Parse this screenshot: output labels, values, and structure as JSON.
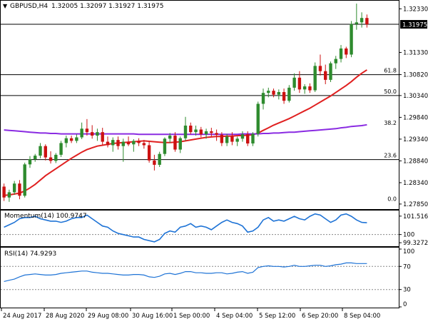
{
  "header": {
    "symbol": "GBPUSD,H4",
    "ohlc": "1.32005 1.32097 1.31927 1.31975"
  },
  "colors": {
    "bull": "#2e8b2e",
    "bear": "#cc1111",
    "sma20": "#e02020",
    "sma100": "#8a2be2",
    "indicator": "#1e73d6",
    "level_line": "#000000",
    "grid_dots": "#888888"
  },
  "chart_data": [
    {
      "type": "candlestick",
      "title": "GBPUSD,H4",
      "ylim": [
        1.2775,
        1.325
      ],
      "y_ticks": [
        "1.32330",
        "1.31975",
        "1.31330",
        "1.30820",
        "1.30340",
        "1.29840",
        "1.29340",
        "1.28840",
        "1.28340",
        "1.27850"
      ],
      "y_tick_values": [
        1.3233,
        1.31975,
        1.3133,
        1.3082,
        1.3034,
        1.2984,
        1.2934,
        1.2884,
        1.2834,
        1.2785
      ],
      "current_price": "1.31975",
      "fib_levels": [
        {
          "label": "61.8",
          "value": 1.3082
        },
        {
          "label": "50.0",
          "value": 1.3034
        },
        {
          "label": "38.2",
          "value": 1.2962
        },
        {
          "label": "23.6",
          "value": 1.2887
        },
        {
          "label": "0.0",
          "value": 1.2787
        }
      ],
      "horizontal_lines": [
        1.31975,
        1.3082,
        1.3034,
        1.2887
      ],
      "x_labels": [
        "24 Aug 2017",
        "28 Aug 2020",
        "29 Aug 08:00",
        "30 Aug 16:00",
        "1 Sep 00:00",
        "4 Sep 04:00",
        "5 Sep 12:00",
        "6 Sep 20:00",
        "8 Sep 04:00"
      ],
      "candles": [
        {
          "o": 1.2825,
          "h": 1.2832,
          "l": 1.2792,
          "c": 1.28
        },
        {
          "o": 1.28,
          "h": 1.2818,
          "l": 1.279,
          "c": 1.2812
        },
        {
          "o": 1.2812,
          "h": 1.2838,
          "l": 1.2806,
          "c": 1.2832
        },
        {
          "o": 1.2832,
          "h": 1.284,
          "l": 1.2796,
          "c": 1.2804
        },
        {
          "o": 1.2804,
          "h": 1.288,
          "l": 1.28,
          "c": 1.2876
        },
        {
          "o": 1.2876,
          "h": 1.2895,
          "l": 1.2868,
          "c": 1.2888
        },
        {
          "o": 1.2888,
          "h": 1.29,
          "l": 1.2882,
          "c": 1.2896
        },
        {
          "o": 1.2896,
          "h": 1.2925,
          "l": 1.289,
          "c": 1.2918
        },
        {
          "o": 1.2918,
          "h": 1.2922,
          "l": 1.2885,
          "c": 1.2892
        },
        {
          "o": 1.2892,
          "h": 1.2906,
          "l": 1.2878,
          "c": 1.2884
        },
        {
          "o": 1.2884,
          "h": 1.2902,
          "l": 1.2879,
          "c": 1.2898
        },
        {
          "o": 1.2898,
          "h": 1.293,
          "l": 1.2893,
          "c": 1.2925
        },
        {
          "o": 1.2925,
          "h": 1.2942,
          "l": 1.2915,
          "c": 1.2936
        },
        {
          "o": 1.2936,
          "h": 1.2942,
          "l": 1.2925,
          "c": 1.293
        },
        {
          "o": 1.293,
          "h": 1.2945,
          "l": 1.2925,
          "c": 1.2938
        },
        {
          "o": 1.2938,
          "h": 1.2972,
          "l": 1.2934,
          "c": 1.2958
        },
        {
          "o": 1.2958,
          "h": 1.298,
          "l": 1.2942,
          "c": 1.295
        },
        {
          "o": 1.295,
          "h": 1.2966,
          "l": 1.2935,
          "c": 1.2942
        },
        {
          "o": 1.2942,
          "h": 1.2958,
          "l": 1.293,
          "c": 1.295
        },
        {
          "o": 1.295,
          "h": 1.296,
          "l": 1.292,
          "c": 1.2928
        },
        {
          "o": 1.2928,
          "h": 1.294,
          "l": 1.2915,
          "c": 1.292
        },
        {
          "o": 1.292,
          "h": 1.2938,
          "l": 1.2905,
          "c": 1.2932
        },
        {
          "o": 1.2932,
          "h": 1.294,
          "l": 1.291,
          "c": 1.2918
        },
        {
          "o": 1.2918,
          "h": 1.2935,
          "l": 1.2882,
          "c": 1.2928
        },
        {
          "o": 1.2928,
          "h": 1.294,
          "l": 1.2918,
          "c": 1.2922
        },
        {
          "o": 1.2922,
          "h": 1.2934,
          "l": 1.2905,
          "c": 1.293
        },
        {
          "o": 1.293,
          "h": 1.2936,
          "l": 1.2918,
          "c": 1.2925
        },
        {
          "o": 1.2925,
          "h": 1.2932,
          "l": 1.2912,
          "c": 1.292
        },
        {
          "o": 1.292,
          "h": 1.2928,
          "l": 1.288,
          "c": 1.2885
        },
        {
          "o": 1.2885,
          "h": 1.2898,
          "l": 1.2862,
          "c": 1.2875
        },
        {
          "o": 1.2875,
          "h": 1.2905,
          "l": 1.287,
          "c": 1.29
        },
        {
          "o": 1.29,
          "h": 1.2938,
          "l": 1.2895,
          "c": 1.2935
        },
        {
          "o": 1.2935,
          "h": 1.2948,
          "l": 1.2925,
          "c": 1.2942
        },
        {
          "o": 1.2942,
          "h": 1.295,
          "l": 1.2905,
          "c": 1.291
        },
        {
          "o": 1.291,
          "h": 1.294,
          "l": 1.2902,
          "c": 1.2936
        },
        {
          "o": 1.2936,
          "h": 1.2985,
          "l": 1.293,
          "c": 1.2965
        },
        {
          "o": 1.2965,
          "h": 1.2972,
          "l": 1.2945,
          "c": 1.295
        },
        {
          "o": 1.295,
          "h": 1.2965,
          "l": 1.2942,
          "c": 1.2956
        },
        {
          "o": 1.2956,
          "h": 1.2962,
          "l": 1.2938,
          "c": 1.2945
        },
        {
          "o": 1.2945,
          "h": 1.2958,
          "l": 1.2935,
          "c": 1.2952
        },
        {
          "o": 1.2952,
          "h": 1.296,
          "l": 1.294,
          "c": 1.2948
        },
        {
          "o": 1.2948,
          "h": 1.2956,
          "l": 1.293,
          "c": 1.2944
        },
        {
          "o": 1.2944,
          "h": 1.295,
          "l": 1.2918,
          "c": 1.2925
        },
        {
          "o": 1.2925,
          "h": 1.2946,
          "l": 1.2918,
          "c": 1.294
        },
        {
          "o": 1.294,
          "h": 1.295,
          "l": 1.292,
          "c": 1.2928
        },
        {
          "o": 1.2928,
          "h": 1.294,
          "l": 1.2918,
          "c": 1.2935
        },
        {
          "o": 1.2935,
          "h": 1.2952,
          "l": 1.2928,
          "c": 1.2945
        },
        {
          "o": 1.2945,
          "h": 1.2952,
          "l": 1.2918,
          "c": 1.2924
        },
        {
          "o": 1.2924,
          "h": 1.295,
          "l": 1.2918,
          "c": 1.2946
        },
        {
          "o": 1.2946,
          "h": 1.302,
          "l": 1.294,
          "c": 1.3015
        },
        {
          "o": 1.3015,
          "h": 1.305,
          "l": 1.3002,
          "c": 1.304
        },
        {
          "o": 1.304,
          "h": 1.3052,
          "l": 1.303,
          "c": 1.3045
        },
        {
          "o": 1.3045,
          "h": 1.305,
          "l": 1.303,
          "c": 1.3036
        },
        {
          "o": 1.3036,
          "h": 1.3048,
          "l": 1.3025,
          "c": 1.3042
        },
        {
          "o": 1.3042,
          "h": 1.305,
          "l": 1.3015,
          "c": 1.3022
        },
        {
          "o": 1.3022,
          "h": 1.3058,
          "l": 1.3018,
          "c": 1.3052
        },
        {
          "o": 1.3052,
          "h": 1.3085,
          "l": 1.3045,
          "c": 1.3075
        },
        {
          "o": 1.3075,
          "h": 1.309,
          "l": 1.304,
          "c": 1.3048
        },
        {
          "o": 1.3048,
          "h": 1.306,
          "l": 1.3038,
          "c": 1.3055
        },
        {
          "o": 1.3055,
          "h": 1.3062,
          "l": 1.304,
          "c": 1.3046
        },
        {
          "o": 1.3046,
          "h": 1.311,
          "l": 1.3042,
          "c": 1.3102
        },
        {
          "o": 1.3102,
          "h": 1.3128,
          "l": 1.308,
          "c": 1.309
        },
        {
          "o": 1.309,
          "h": 1.3105,
          "l": 1.306,
          "c": 1.307
        },
        {
          "o": 1.307,
          "h": 1.3112,
          "l": 1.3065,
          "c": 1.3108
        },
        {
          "o": 1.3108,
          "h": 1.3125,
          "l": 1.3095,
          "c": 1.3118
        },
        {
          "o": 1.3118,
          "h": 1.315,
          "l": 1.311,
          "c": 1.3142
        },
        {
          "o": 1.3142,
          "h": 1.3146,
          "l": 1.312,
          "c": 1.3128
        },
        {
          "o": 1.3128,
          "h": 1.3205,
          "l": 1.3122,
          "c": 1.3198
        },
        {
          "o": 1.3198,
          "h": 1.3245,
          "l": 1.3185,
          "c": 1.3202
        },
        {
          "o": 1.3202,
          "h": 1.3225,
          "l": 1.319,
          "c": 1.3212
        },
        {
          "o": 1.3212,
          "h": 1.322,
          "l": 1.319,
          "c": 1.31975
        }
      ],
      "series": [
        {
          "id": "sma20",
          "values": [
            1.2805,
            1.2806,
            1.2808,
            1.281,
            1.2815,
            1.2822,
            1.283,
            1.284,
            1.285,
            1.2858,
            1.2866,
            1.2874,
            1.2882,
            1.289,
            1.2897,
            1.2904,
            1.291,
            1.2914,
            1.2918,
            1.292,
            1.2922,
            1.2924,
            1.2925,
            1.2926,
            1.2927,
            1.2928,
            1.2929,
            1.293,
            1.2929,
            1.2928,
            1.2927,
            1.2926,
            1.2926,
            1.2927,
            1.2928,
            1.293,
            1.2932,
            1.2934,
            1.2936,
            1.2938,
            1.2939,
            1.294,
            1.294,
            1.2941,
            1.2941,
            1.2942,
            1.2942,
            1.2943,
            1.2944,
            1.2948,
            1.2954,
            1.296,
            1.2966,
            1.2971,
            1.2976,
            1.2981,
            1.2987,
            1.2993,
            1.2999,
            1.3005,
            1.3012,
            1.3019,
            1.3026,
            1.3033,
            1.3041,
            1.3049,
            1.3057,
            1.3066,
            1.3076,
            1.3085,
            1.3093
          ]
        },
        {
          "id": "sma100",
          "values": [
            1.2955,
            1.2954,
            1.2953,
            1.2952,
            1.2951,
            1.295,
            1.2949,
            1.2948,
            1.2948,
            1.2947,
            1.2947,
            1.2946,
            1.2946,
            1.2946,
            1.2946,
            1.2946,
            1.2946,
            1.2946,
            1.2946,
            1.2946,
            1.2946,
            1.2946,
            1.2946,
            1.2946,
            1.2946,
            1.2946,
            1.2945,
            1.2945,
            1.2945,
            1.2945,
            1.2945,
            1.2945,
            1.2945,
            1.2945,
            1.2945,
            1.2945,
            1.2945,
            1.2945,
            1.2945,
            1.2945,
            1.2945,
            1.2945,
            1.2945,
            1.2945,
            1.2945,
            1.2945,
            1.2946,
            1.2946,
            1.2946,
            1.2946,
            1.2947,
            1.2947,
            1.2948,
            1.2948,
            1.2949,
            1.295,
            1.295,
            1.2951,
            1.2952,
            1.2953,
            1.2954,
            1.2955,
            1.2956,
            1.2957,
            1.2958,
            1.296,
            1.2961,
            1.2963,
            1.2964,
            1.2965,
            1.2967
          ]
        }
      ]
    },
    {
      "type": "line",
      "title": "Momentum(14) 100.9747",
      "ylim": [
        99.1,
        101.8
      ],
      "y_ticks": [
        "101.5166",
        "100",
        "99.3272"
      ],
      "y_tick_values": [
        101.5166,
        100.0,
        99.3272
      ],
      "dashed_level": 100,
      "values": [
        100.6,
        100.8,
        101.0,
        101.3,
        101.4,
        101.4,
        101.5,
        101.3,
        101.2,
        101.1,
        101.1,
        101.0,
        101.1,
        101.3,
        101.4,
        101.4,
        101.6,
        101.3,
        101.0,
        100.7,
        100.6,
        100.3,
        100.1,
        100.0,
        99.9,
        99.8,
        99.8,
        99.6,
        99.5,
        99.4,
        99.6,
        100.1,
        100.3,
        100.2,
        100.6,
        100.7,
        100.9,
        100.6,
        100.7,
        100.6,
        100.4,
        100.7,
        101.0,
        101.2,
        101.0,
        100.9,
        100.7,
        100.2,
        100.3,
        100.6,
        101.2,
        101.4,
        101.1,
        101.2,
        101.1,
        101.3,
        101.5,
        101.3,
        101.2,
        101.5,
        101.7,
        101.6,
        101.3,
        101.0,
        101.2,
        101.6,
        101.7,
        101.5,
        101.2,
        101.0,
        100.97
      ]
    },
    {
      "type": "line",
      "title": "RSI(14) 74.9293",
      "ylim": [
        0,
        100
      ],
      "y_ticks": [
        "100",
        "70",
        "30",
        "0"
      ],
      "y_tick_values": [
        100,
        70,
        30,
        0
      ],
      "dashed_levels": [
        70,
        30
      ],
      "values": [
        44,
        46,
        48,
        52,
        55,
        56,
        57,
        56,
        55,
        55,
        56,
        58,
        59,
        60,
        61,
        62,
        62,
        60,
        59,
        58,
        58,
        57,
        56,
        55,
        55,
        56,
        56,
        55,
        52,
        51,
        53,
        57,
        58,
        56,
        58,
        61,
        61,
        59,
        59,
        58,
        58,
        59,
        59,
        57,
        58,
        60,
        61,
        58,
        60,
        68,
        70,
        71,
        70,
        70,
        69,
        70,
        72,
        70,
        70,
        71,
        72,
        72,
        70,
        71,
        73,
        74,
        76,
        76,
        75,
        75,
        74.93
      ]
    }
  ],
  "indicator_labels": {
    "momentum": "Momentum(14) 100.9747",
    "rsi": "RSI(14) 74.9293"
  }
}
